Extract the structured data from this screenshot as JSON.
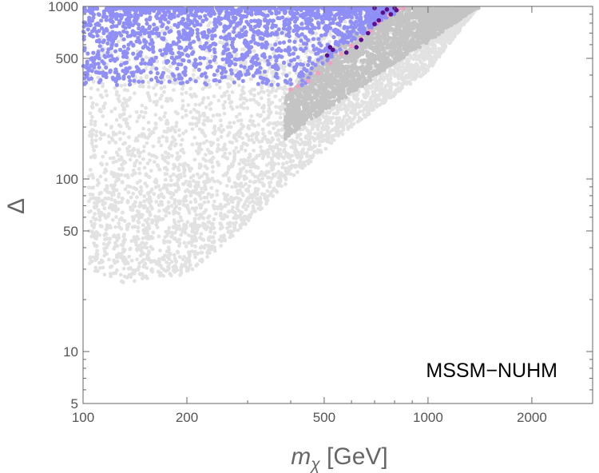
{
  "chart_data": {
    "type": "scatter",
    "title": "",
    "xlabel_main": "m",
    "xlabel_sub": "χ",
    "xlabel_unit": " [GeV]",
    "ylabel": "Δ",
    "xscale": "log",
    "yscale": "log",
    "xlim": [
      100,
      3000
    ],
    "ylim": [
      5,
      1000
    ],
    "x_major_ticks": [
      100,
      200,
      500,
      1000,
      2000
    ],
    "x_tick_labels": [
      "100",
      "200",
      "500",
      "1000",
      "2000"
    ],
    "y_major_ticks": [
      5,
      10,
      50,
      100,
      500,
      1000
    ],
    "y_tick_labels": [
      "5",
      "10",
      "50",
      "100",
      "500",
      "1000"
    ],
    "annotation": "MSSM−NUHM",
    "annotation_position": "bottom-right",
    "grid": false,
    "colors": {
      "light_gray": "#e2e2e2",
      "medium_gray": "#c4c4c4",
      "blue": "#8f8ff7",
      "pink": "#f2a0c0",
      "dark_purple": "#5a0f8c",
      "axis": "#666666"
    },
    "series": [
      {
        "name": "light-gray-region",
        "color": "#e2e2e2",
        "description_points": "approximate envelope of a dense cloud",
        "envelope": {
          "lower": [
            [
              104,
              30
            ],
            [
              130,
              25
            ],
            [
              200,
              28
            ],
            [
              300,
              55
            ],
            [
              400,
              100
            ],
            [
              600,
              200
            ],
            [
              1000,
              420
            ],
            [
              1400,
              1000
            ]
          ],
          "upper_y": 1000
        }
      },
      {
        "name": "medium-gray-region",
        "color": "#c4c4c4",
        "envelope": {
          "lower": [
            [
              385,
              170
            ],
            [
              450,
              215
            ],
            [
              600,
              310
            ],
            [
              800,
              470
            ],
            [
              1000,
              620
            ],
            [
              1400,
              1000
            ]
          ],
          "upper": [
            [
              385,
              300
            ],
            [
              450,
              420
            ],
            [
              520,
              560
            ],
            [
              600,
              700
            ],
            [
              700,
              860
            ],
            [
              780,
              1000
            ]
          ]
        }
      },
      {
        "name": "blue-points",
        "color": "#8f8ff7",
        "envelope": {
          "x_range": [
            100,
            800
          ],
          "y_lower": 350,
          "y_upper": 1000
        }
      },
      {
        "name": "pink-points",
        "color": "#f2a0c0",
        "points": [
          [
            400,
            330
          ],
          [
            420,
            345
          ],
          [
            450,
            370
          ],
          [
            480,
            410
          ],
          [
            520,
            470
          ],
          [
            560,
            530
          ],
          [
            600,
            590
          ],
          [
            640,
            650
          ],
          [
            680,
            720
          ],
          [
            720,
            810
          ],
          [
            770,
            890
          ],
          [
            820,
            960
          ],
          [
            850,
            1000
          ]
        ]
      },
      {
        "name": "dark-purple-points",
        "color": "#5a0f8c",
        "points": [
          [
            510,
            520
          ],
          [
            520,
            580
          ],
          [
            530,
            560
          ],
          [
            580,
            540
          ],
          [
            620,
            580
          ],
          [
            640,
            640
          ],
          [
            670,
            700
          ],
          [
            700,
            790
          ],
          [
            720,
            830
          ],
          [
            740,
            920
          ],
          [
            760,
            960
          ],
          [
            780,
            900
          ],
          [
            800,
            1000
          ],
          [
            810,
            950
          ],
          [
            700,
            980
          ]
        ]
      }
    ]
  }
}
